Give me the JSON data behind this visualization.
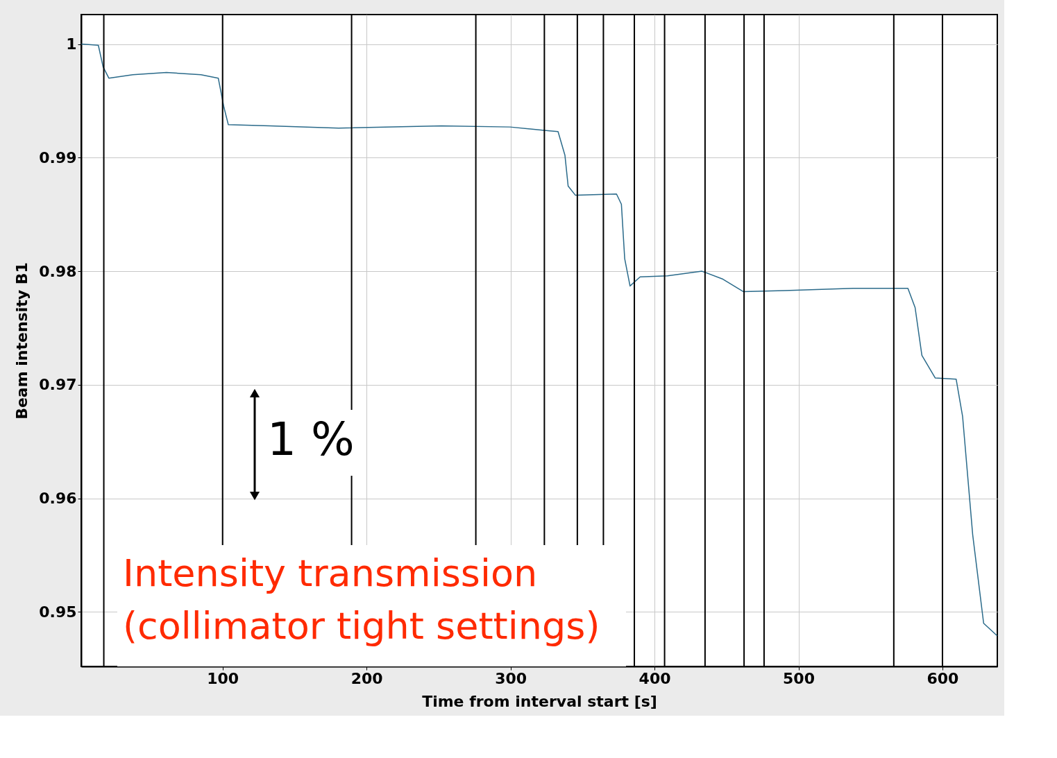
{
  "chart_data": {
    "type": "line",
    "xlabel": "Time from interval start [s]",
    "ylabel": "Beam intensity B1",
    "series": [
      {
        "color": "#2a6a8a",
        "x": [
          2,
          13.7,
          17,
          21,
          37.6,
          61,
          85,
          97,
          101,
          104,
          133,
          180.6,
          252,
          299.7,
          323.5,
          333,
          337.8,
          340,
          345,
          373.6,
          377,
          379.3,
          383,
          390,
          409,
          433,
          447.5,
          461.8,
          490.4,
          538,
          576,
          581,
          585.7,
          595,
          609.5,
          614,
          621,
          628.6,
          638
        ],
        "values": [
          1.0,
          0.9999,
          0.998,
          0.997,
          0.9973,
          0.9975,
          0.9973,
          0.997,
          0.9944,
          0.9929,
          0.9928,
          0.9926,
          0.9928,
          0.9927,
          0.9924,
          0.9923,
          0.9902,
          0.9875,
          0.9867,
          0.9868,
          0.9859,
          0.9811,
          0.9787,
          0.9795,
          0.9796,
          0.98,
          0.9793,
          0.9782,
          0.9783,
          0.9785,
          0.9785,
          0.9768,
          0.9726,
          0.9706,
          0.9705,
          0.9672,
          0.9568,
          0.949,
          0.9479
        ]
      }
    ],
    "xlim": [
      1.8,
      638.1
    ],
    "ylim": [
      0.9452,
      1.0026
    ],
    "xticks": [
      100,
      200,
      300,
      400,
      500,
      600
    ],
    "yticks": [
      0.95,
      0.96,
      0.97,
      0.98,
      0.99,
      1
    ],
    "grid": true,
    "marker": "none",
    "line_style": "solid",
    "ref_lines": [
      {
        "axis": "x",
        "value": 17.5,
        "color": "#000000"
      },
      {
        "axis": "x",
        "value": 100,
        "color": "#000000"
      },
      {
        "axis": "x",
        "value": 189.6,
        "color": "#000000"
      },
      {
        "axis": "x",
        "value": 275.9,
        "color": "#000000"
      },
      {
        "axis": "x",
        "value": 323.5,
        "color": "#000000"
      },
      {
        "axis": "x",
        "value": 346.4,
        "color": "#000000"
      },
      {
        "axis": "x",
        "value": 364.5,
        "color": "#000000"
      },
      {
        "axis": "x",
        "value": 386,
        "color": "#000000"
      },
      {
        "axis": "x",
        "value": 407,
        "color": "#000000"
      },
      {
        "axis": "x",
        "value": 435.1,
        "color": "#000000"
      },
      {
        "axis": "x",
        "value": 462.2,
        "color": "#000000"
      },
      {
        "axis": "x",
        "value": 476.1,
        "color": "#000000"
      },
      {
        "axis": "x",
        "value": 566.2,
        "color": "#000000"
      },
      {
        "axis": "x",
        "value": 600,
        "color": "#000000"
      }
    ],
    "annotations": [
      "1 %",
      "Intensity transmission\n(collimator tight settings)"
    ]
  }
}
